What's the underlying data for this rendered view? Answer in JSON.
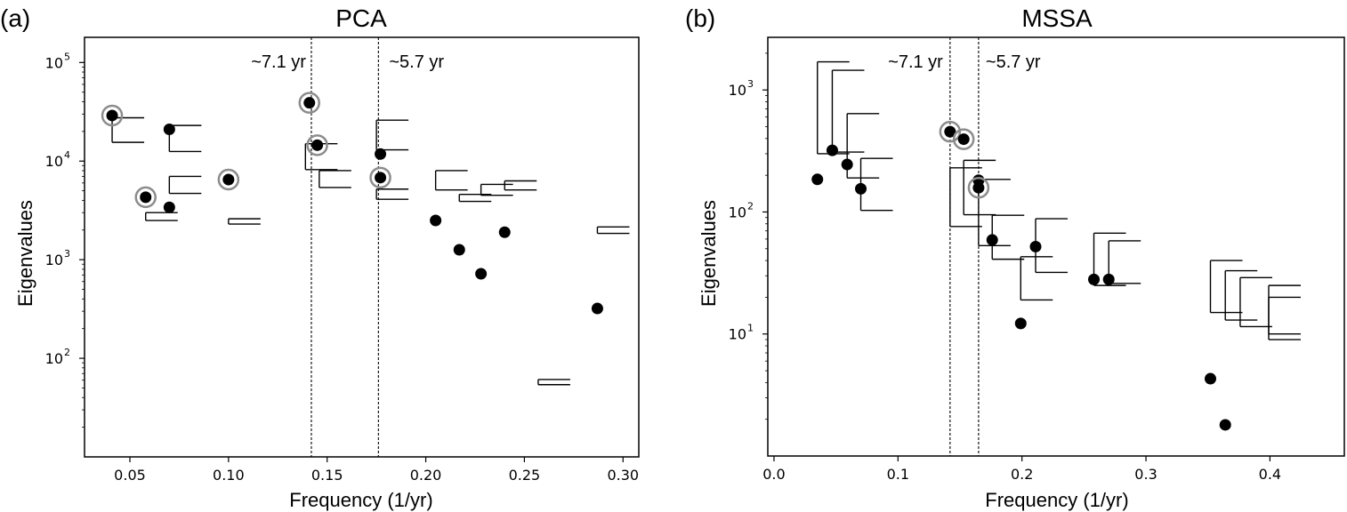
{
  "chart_data": [
    {
      "type": "scatter",
      "panel_label": "(a)",
      "title": "PCA",
      "xlabel": "Frequency (1/yr)",
      "ylabel": "Eigenvalues",
      "yscale": "log",
      "xlim": [
        0.027,
        0.308
      ],
      "ylim": [
        10,
        180000
      ],
      "x_ticks": [
        0.05,
        0.1,
        0.15,
        0.2,
        0.25,
        0.3
      ],
      "x_tick_labels": [
        "0.05",
        "0.10",
        "0.15",
        "0.20",
        "0.25",
        "0.30"
      ],
      "y_ticks": [
        100,
        1000,
        10000,
        100000
      ],
      "y_tick_bases": [
        "10",
        "10",
        "10",
        "10"
      ],
      "y_tick_exps": [
        "2",
        "3",
        "4",
        "5"
      ],
      "vlines": [
        {
          "x": 0.142,
          "label": "~7.1 yr"
        },
        {
          "x": 0.176,
          "label": "~5.7 yr"
        }
      ],
      "points": [
        {
          "x": 0.041,
          "y": 29000,
          "circled": true
        },
        {
          "x": 0.058,
          "y": 4300,
          "circled": true
        },
        {
          "x": 0.07,
          "y": 21000,
          "circled": false
        },
        {
          "x": 0.07,
          "y": 3400,
          "circled": false
        },
        {
          "x": 0.1,
          "y": 6500,
          "circled": true
        },
        {
          "x": 0.141,
          "y": 39000,
          "circled": true
        },
        {
          "x": 0.145,
          "y": 14500,
          "circled": true
        },
        {
          "x": 0.177,
          "y": 11800,
          "circled": false
        },
        {
          "x": 0.177,
          "y": 6800,
          "circled": true
        },
        {
          "x": 0.205,
          "y": 2500,
          "circled": false
        },
        {
          "x": 0.217,
          "y": 1260,
          "circled": false
        },
        {
          "x": 0.228,
          "y": 720,
          "circled": false
        },
        {
          "x": 0.24,
          "y": 1900,
          "circled": false
        },
        {
          "x": 0.287,
          "y": 320,
          "circled": false
        }
      ],
      "error_bars": [
        {
          "x": 0.041,
          "low": 15500,
          "high": 27500
        },
        {
          "x": 0.058,
          "low": 2500,
          "high": 3000
        },
        {
          "x": 0.07,
          "low": 12500,
          "high": 23000
        },
        {
          "x": 0.07,
          "low": 4700,
          "high": 7000
        },
        {
          "x": 0.1,
          "low": 2300,
          "high": 2600
        },
        {
          "x": 0.139,
          "low": 8200,
          "high": 15000
        },
        {
          "x": 0.146,
          "low": 5400,
          "high": 8000
        },
        {
          "x": 0.175,
          "low": 13000,
          "high": 26000
        },
        {
          "x": 0.175,
          "low": 4100,
          "high": 5200
        },
        {
          "x": 0.205,
          "low": 5100,
          "high": 8000
        },
        {
          "x": 0.217,
          "low": 3900,
          "high": 4600
        },
        {
          "x": 0.228,
          "low": 4500,
          "high": 5800
        },
        {
          "x": 0.24,
          "low": 5100,
          "high": 6300
        },
        {
          "x": 0.257,
          "low": 54,
          "high": 61
        },
        {
          "x": 0.287,
          "low": 1850,
          "high": 2150
        }
      ]
    },
    {
      "type": "scatter",
      "panel_label": "(b)",
      "title": "MSSA",
      "xlabel": "Frequency (1/yr)",
      "ylabel": "Eigenvalues",
      "yscale": "log",
      "xlim": [
        -0.005,
        0.46
      ],
      "ylim": [
        1,
        2700
      ],
      "x_ticks": [
        0.0,
        0.1,
        0.2,
        0.3,
        0.4
      ],
      "x_tick_labels": [
        "0.0",
        "0.1",
        "0.2",
        "0.3",
        "0.4"
      ],
      "y_ticks": [
        10,
        100,
        1000
      ],
      "y_tick_bases": [
        "10",
        "10",
        "10"
      ],
      "y_tick_exps": [
        "1",
        "2",
        "3"
      ],
      "vlines": [
        {
          "x": 0.142,
          "label": "~7.1 yr"
        },
        {
          "x": 0.165,
          "label": "~5.7 yr"
        }
      ],
      "points": [
        {
          "x": 0.035,
          "y": 185,
          "circled": false
        },
        {
          "x": 0.047,
          "y": 320,
          "circled": false
        },
        {
          "x": 0.059,
          "y": 245,
          "circled": false
        },
        {
          "x": 0.07,
          "y": 155,
          "circled": false
        },
        {
          "x": 0.142,
          "y": 455,
          "circled": true
        },
        {
          "x": 0.153,
          "y": 395,
          "circled": true
        },
        {
          "x": 0.165,
          "y": 182,
          "circled": false
        },
        {
          "x": 0.165,
          "y": 158,
          "circled": true
        },
        {
          "x": 0.176,
          "y": 59,
          "circled": false
        },
        {
          "x": 0.199,
          "y": 12.2,
          "circled": false
        },
        {
          "x": 0.211,
          "y": 52,
          "circled": false
        },
        {
          "x": 0.258,
          "y": 28,
          "circled": false
        },
        {
          "x": 0.27,
          "y": 28,
          "circled": false
        },
        {
          "x": 0.352,
          "y": 4.3,
          "circled": false
        },
        {
          "x": 0.364,
          "y": 1.8,
          "circled": false
        }
      ],
      "error_bars": [
        {
          "x": 0.035,
          "low": 300,
          "high": 1700
        },
        {
          "x": 0.047,
          "low": 310,
          "high": 1450
        },
        {
          "x": 0.059,
          "low": 190,
          "high": 640
        },
        {
          "x": 0.07,
          "low": 103,
          "high": 275
        },
        {
          "x": 0.142,
          "low": 76,
          "high": 230
        },
        {
          "x": 0.153,
          "low": 95,
          "high": 265
        },
        {
          "x": 0.165,
          "low": 53,
          "high": 185
        },
        {
          "x": 0.176,
          "low": 41,
          "high": 94
        },
        {
          "x": 0.199,
          "low": 19,
          "high": 43
        },
        {
          "x": 0.211,
          "low": 32,
          "high": 88
        },
        {
          "x": 0.258,
          "low": 25,
          "high": 67
        },
        {
          "x": 0.27,
          "low": 26,
          "high": 58
        },
        {
          "x": 0.352,
          "low": 15,
          "high": 40
        },
        {
          "x": 0.364,
          "low": 13,
          "high": 33
        },
        {
          "x": 0.376,
          "low": 11.5,
          "high": 29
        },
        {
          "x": 0.399,
          "low": 10,
          "high": 25
        },
        {
          "x": 0.399,
          "low": 9,
          "high": 20
        }
      ]
    }
  ]
}
